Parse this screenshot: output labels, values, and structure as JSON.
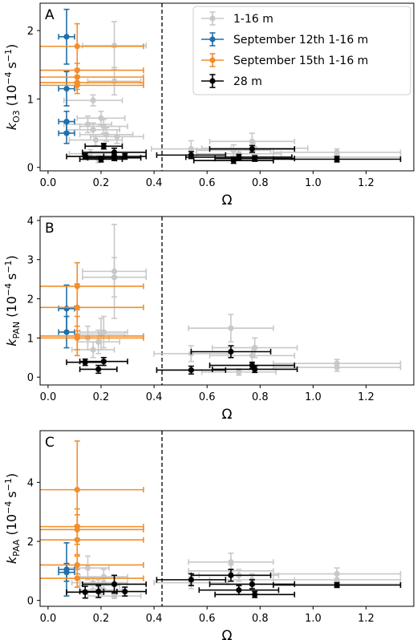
{
  "chart_data": [
    {
      "type": "scatter",
      "panel_label": "A",
      "xlabel": "Ω",
      "ylabel": {
        "k": "k",
        "sub": "O3",
        "unit_pre": "(10",
        "exp": "−4",
        "unit_mid": "s",
        "exp2": "−1",
        "unit_post": ")"
      },
      "xlim": [
        -0.03,
        1.38
      ],
      "ylim": [
        -0.05,
        2.4
      ],
      "xticks": [
        {
          "v": 0.0,
          "label": "0.0"
        },
        {
          "v": 0.2,
          "label": "0.2"
        },
        {
          "v": 0.4,
          "label": "0.4"
        },
        {
          "v": 0.6,
          "label": "0.6"
        },
        {
          "v": 0.8,
          "label": "0.8"
        },
        {
          "v": 1.0,
          "label": "1.0"
        },
        {
          "v": 1.2,
          "label": "1.2"
        }
      ],
      "yticks": [
        {
          "v": 0,
          "label": "0"
        },
        {
          "v": 1,
          "label": "1"
        },
        {
          "v": 2,
          "label": "2"
        }
      ],
      "vline": 0.43,
      "legend": {
        "position": "top-right",
        "entries": [
          {
            "name": "1-16 m",
            "color": "#c8c8c8"
          },
          {
            "name": "September 12th 1-16 m",
            "color": "#1f6fa8"
          },
          {
            "name": "September 15th 1-16 m",
            "color": "#f28e2b"
          },
          {
            "name": "28 m",
            "color": "#000000"
          }
        ]
      },
      "series": [
        {
          "name": "1-16 m",
          "color": "#c8c8c8",
          "points": [
            [
              0.25,
              1.78,
              0.12,
              0.35
            ],
            [
              0.25,
              1.26,
              0.1,
              0.2
            ],
            [
              0.17,
              0.98,
              0.11,
              0.08
            ],
            [
              0.15,
              0.63,
              0.09,
              0.12
            ],
            [
              0.17,
              0.55,
              0.1,
              0.1
            ],
            [
              0.2,
              0.72,
              0.09,
              0.1
            ],
            [
              0.21,
              0.6,
              0.09,
              0.1
            ],
            [
              0.18,
              0.4,
              0.1,
              0.08
            ],
            [
              0.22,
              0.48,
              0.1,
              0.1
            ],
            [
              0.16,
              0.2,
              0.08,
              0.06
            ],
            [
              0.19,
              0.12,
              0.07,
              0.05
            ],
            [
              0.26,
              0.45,
              0.1,
              0.1
            ],
            [
              0.54,
              0.27,
              0.15,
              0.12
            ],
            [
              0.7,
              0.25,
              0.14,
              0.08
            ],
            [
              0.72,
              0.2,
              0.16,
              0.08
            ],
            [
              0.77,
              0.38,
              0.16,
              0.12
            ],
            [
              0.78,
              0.28,
              0.2,
              0.1
            ],
            [
              1.09,
              0.15,
              0.24,
              0.05
            ],
            [
              1.09,
              0.22,
              0.24,
              0.05
            ]
          ]
        },
        {
          "name": "September 12th 1-16 m",
          "color": "#1f6fa8",
          "points": [
            [
              0.07,
              1.91,
              0.03,
              0.4
            ],
            [
              0.07,
              1.15,
              0.03,
              0.25
            ],
            [
              0.07,
              0.67,
              0.03,
              0.15
            ],
            [
              0.07,
              0.5,
              0.03,
              0.15
            ]
          ]
        },
        {
          "name": "September 15th 1-16 m",
          "color": "#f28e2b",
          "points": [
            [
              0.11,
              1.77,
              0.25,
              0.33
            ],
            [
              0.11,
              1.42,
              0.25,
              0.1
            ],
            [
              0.11,
              1.32,
              0.25,
              0.1
            ],
            [
              0.11,
              1.24,
              0.25,
              0.1
            ],
            [
              0.11,
              1.2,
              0.25,
              0.12
            ]
          ]
        },
        {
          "name": "28 m",
          "color": "#000000",
          "points": [
            [
              0.14,
              0.16,
              0.07,
              0.04
            ],
            [
              0.21,
              0.31,
              0.07,
              0.04
            ],
            [
              0.2,
              0.12,
              0.08,
              0.04
            ],
            [
              0.25,
              0.22,
              0.12,
              0.06
            ],
            [
              0.25,
              0.14,
              0.1,
              0.04
            ],
            [
              0.29,
              0.16,
              0.08,
              0.04
            ],
            [
              0.54,
              0.18,
              0.13,
              0.05
            ],
            [
              0.7,
              0.1,
              0.15,
              0.04
            ],
            [
              0.72,
              0.15,
              0.2,
              0.04
            ],
            [
              0.77,
              0.27,
              0.16,
              0.05
            ],
            [
              0.78,
              0.13,
              0.15,
              0.04
            ],
            [
              1.09,
              0.12,
              0.24,
              0.04
            ]
          ]
        }
      ]
    },
    {
      "type": "scatter",
      "panel_label": "B",
      "xlabel": "Ω",
      "ylabel": {
        "k": "k",
        "sub": "PAN",
        "unit_pre": "(10",
        "exp": "−4",
        "unit_mid": "s",
        "exp2": "−1",
        "unit_post": ")"
      },
      "xlim": [
        -0.03,
        1.38
      ],
      "ylim": [
        -0.2,
        4.1
      ],
      "xticks": [
        {
          "v": 0.0,
          "label": "0.0"
        },
        {
          "v": 0.2,
          "label": "0.2"
        },
        {
          "v": 0.4,
          "label": "0.4"
        },
        {
          "v": 0.6,
          "label": "0.6"
        },
        {
          "v": 0.8,
          "label": "0.8"
        },
        {
          "v": 1.0,
          "label": "1.0"
        },
        {
          "v": 1.2,
          "label": "1.2"
        }
      ],
      "yticks": [
        {
          "v": 0,
          "label": "0"
        },
        {
          "v": 1,
          "label": "1"
        },
        {
          "v": 2,
          "label": "2"
        },
        {
          "v": 3,
          "label": "3"
        },
        {
          "v": 4,
          "label": "4"
        }
      ],
      "vline": 0.43,
      "series": [
        {
          "name": "1-16 m",
          "color": "#c8c8c8",
          "points": [
            [
              0.25,
              2.7,
              0.12,
              1.2
            ],
            [
              0.25,
              2.55,
              0.12,
              0.5
            ],
            [
              0.2,
              1.1,
              0.09,
              0.4
            ],
            [
              0.15,
              1.0,
              0.08,
              0.3
            ],
            [
              0.17,
              0.7,
              0.08,
              0.2
            ],
            [
              0.19,
              0.9,
              0.08,
              0.3
            ],
            [
              0.21,
              1.15,
              0.09,
              0.4
            ],
            [
              0.54,
              0.6,
              0.14,
              0.2
            ],
            [
              0.69,
              1.25,
              0.16,
              0.35
            ],
            [
              0.72,
              0.13,
              0.14,
              0.08
            ],
            [
              0.77,
              0.55,
              0.16,
              0.2
            ],
            [
              0.78,
              0.75,
              0.16,
              0.25
            ],
            [
              1.09,
              0.25,
              0.24,
              0.1
            ],
            [
              1.09,
              0.35,
              0.24,
              0.1
            ]
          ]
        },
        {
          "name": "September 12th 1-16 m",
          "color": "#1f6fa8",
          "points": [
            [
              0.07,
              1.75,
              0.03,
              0.6
            ],
            [
              0.07,
              1.15,
              0.03,
              0.4
            ]
          ]
        },
        {
          "name": "September 15th 1-16 m",
          "color": "#f28e2b",
          "points": [
            [
              0.11,
              2.32,
              0.25,
              0.6
            ],
            [
              0.11,
              1.78,
              0.25,
              0.6
            ],
            [
              0.11,
              1.05,
              0.25,
              0.5
            ],
            [
              0.11,
              1.0,
              0.25,
              0.3
            ]
          ]
        },
        {
          "name": "28 m",
          "color": "#000000",
          "points": [
            [
              0.14,
              0.38,
              0.07,
              0.08
            ],
            [
              0.19,
              0.2,
              0.07,
              0.1
            ],
            [
              0.21,
              0.4,
              0.09,
              0.1
            ],
            [
              0.54,
              0.18,
              0.13,
              0.1
            ],
            [
              0.69,
              0.65,
              0.15,
              0.15
            ],
            [
              0.77,
              0.3,
              0.16,
              0.08
            ],
            [
              0.78,
              0.2,
              0.16,
              0.08
            ]
          ]
        }
      ]
    },
    {
      "type": "scatter",
      "panel_label": "C",
      "xlabel": "Ω",
      "ylabel": {
        "k": "k",
        "sub": "PAA",
        "unit_pre": "(10",
        "exp": "−4",
        "unit_mid": "s",
        "exp2": "−1",
        "unit_post": ")"
      },
      "xlim": [
        -0.03,
        1.38
      ],
      "ylim": [
        -0.2,
        5.75
      ],
      "xticks": [
        {
          "v": 0.0,
          "label": "0.0"
        },
        {
          "v": 0.2,
          "label": "0.2"
        },
        {
          "v": 0.4,
          "label": "0.4"
        },
        {
          "v": 0.6,
          "label": "0.6"
        },
        {
          "v": 0.8,
          "label": "0.8"
        },
        {
          "v": 1.0,
          "label": "1.0"
        },
        {
          "v": 1.2,
          "label": "1.2"
        }
      ],
      "yticks": [
        {
          "v": 0,
          "label": "0"
        },
        {
          "v": 2,
          "label": "2"
        },
        {
          "v": 4,
          "label": "4"
        }
      ],
      "vline": 0.43,
      "series": [
        {
          "name": "1-16 m",
          "color": "#c8c8c8",
          "points": [
            [
              0.15,
              1.1,
              0.08,
              0.4
            ],
            [
              0.17,
              0.6,
              0.08,
              0.2
            ],
            [
              0.19,
              0.5,
              0.08,
              0.2
            ],
            [
              0.2,
              0.35,
              0.08,
              0.15
            ],
            [
              0.21,
              0.6,
              0.09,
              0.2
            ],
            [
              0.21,
              0.8,
              0.09,
              0.25
            ],
            [
              0.25,
              0.15,
              0.1,
              0.08
            ],
            [
              0.54,
              0.6,
              0.14,
              0.2
            ],
            [
              0.69,
              1.3,
              0.16,
              0.3
            ],
            [
              0.69,
              1.0,
              0.16,
              0.2
            ],
            [
              0.72,
              0.85,
              0.15,
              0.2
            ],
            [
              0.77,
              0.7,
              0.16,
              0.2
            ],
            [
              1.09,
              0.9,
              0.24,
              0.2
            ],
            [
              1.09,
              0.7,
              0.24,
              0.2
            ],
            [
              1.09,
              0.55,
              0.24,
              0.1
            ]
          ]
        },
        {
          "name": "September 12th 1-16 m",
          "color": "#1f6fa8",
          "points": [
            [
              0.07,
              1.05,
              0.03,
              0.9
            ],
            [
              0.07,
              0.95,
              0.03,
              0.3
            ]
          ]
        },
        {
          "name": "September 15th 1-16 m",
          "color": "#f28e2b",
          "points": [
            [
              0.11,
              3.75,
              0.25,
              1.65
            ],
            [
              0.11,
              2.5,
              0.25,
              0.6
            ],
            [
              0.11,
              2.4,
              0.25,
              0.5
            ],
            [
              0.11,
              2.05,
              0.25,
              0.5
            ],
            [
              0.11,
              1.2,
              0.25,
              0.3
            ],
            [
              0.11,
              0.75,
              0.25,
              0.3
            ]
          ]
        },
        {
          "name": "28 m",
          "color": "#000000",
          "points": [
            [
              0.14,
              0.28,
              0.07,
              0.2
            ],
            [
              0.19,
              0.3,
              0.07,
              0.2
            ],
            [
              0.25,
              0.55,
              0.12,
              0.3
            ],
            [
              0.29,
              0.3,
              0.08,
              0.15
            ],
            [
              0.54,
              0.7,
              0.13,
              0.2
            ],
            [
              0.69,
              0.85,
              0.15,
              0.2
            ],
            [
              0.72,
              0.35,
              0.15,
              0.15
            ],
            [
              0.77,
              0.55,
              0.16,
              0.15
            ],
            [
              0.78,
              0.2,
              0.15,
              0.1
            ],
            [
              1.09,
              0.52,
              0.24,
              0.08
            ]
          ]
        }
      ]
    }
  ]
}
